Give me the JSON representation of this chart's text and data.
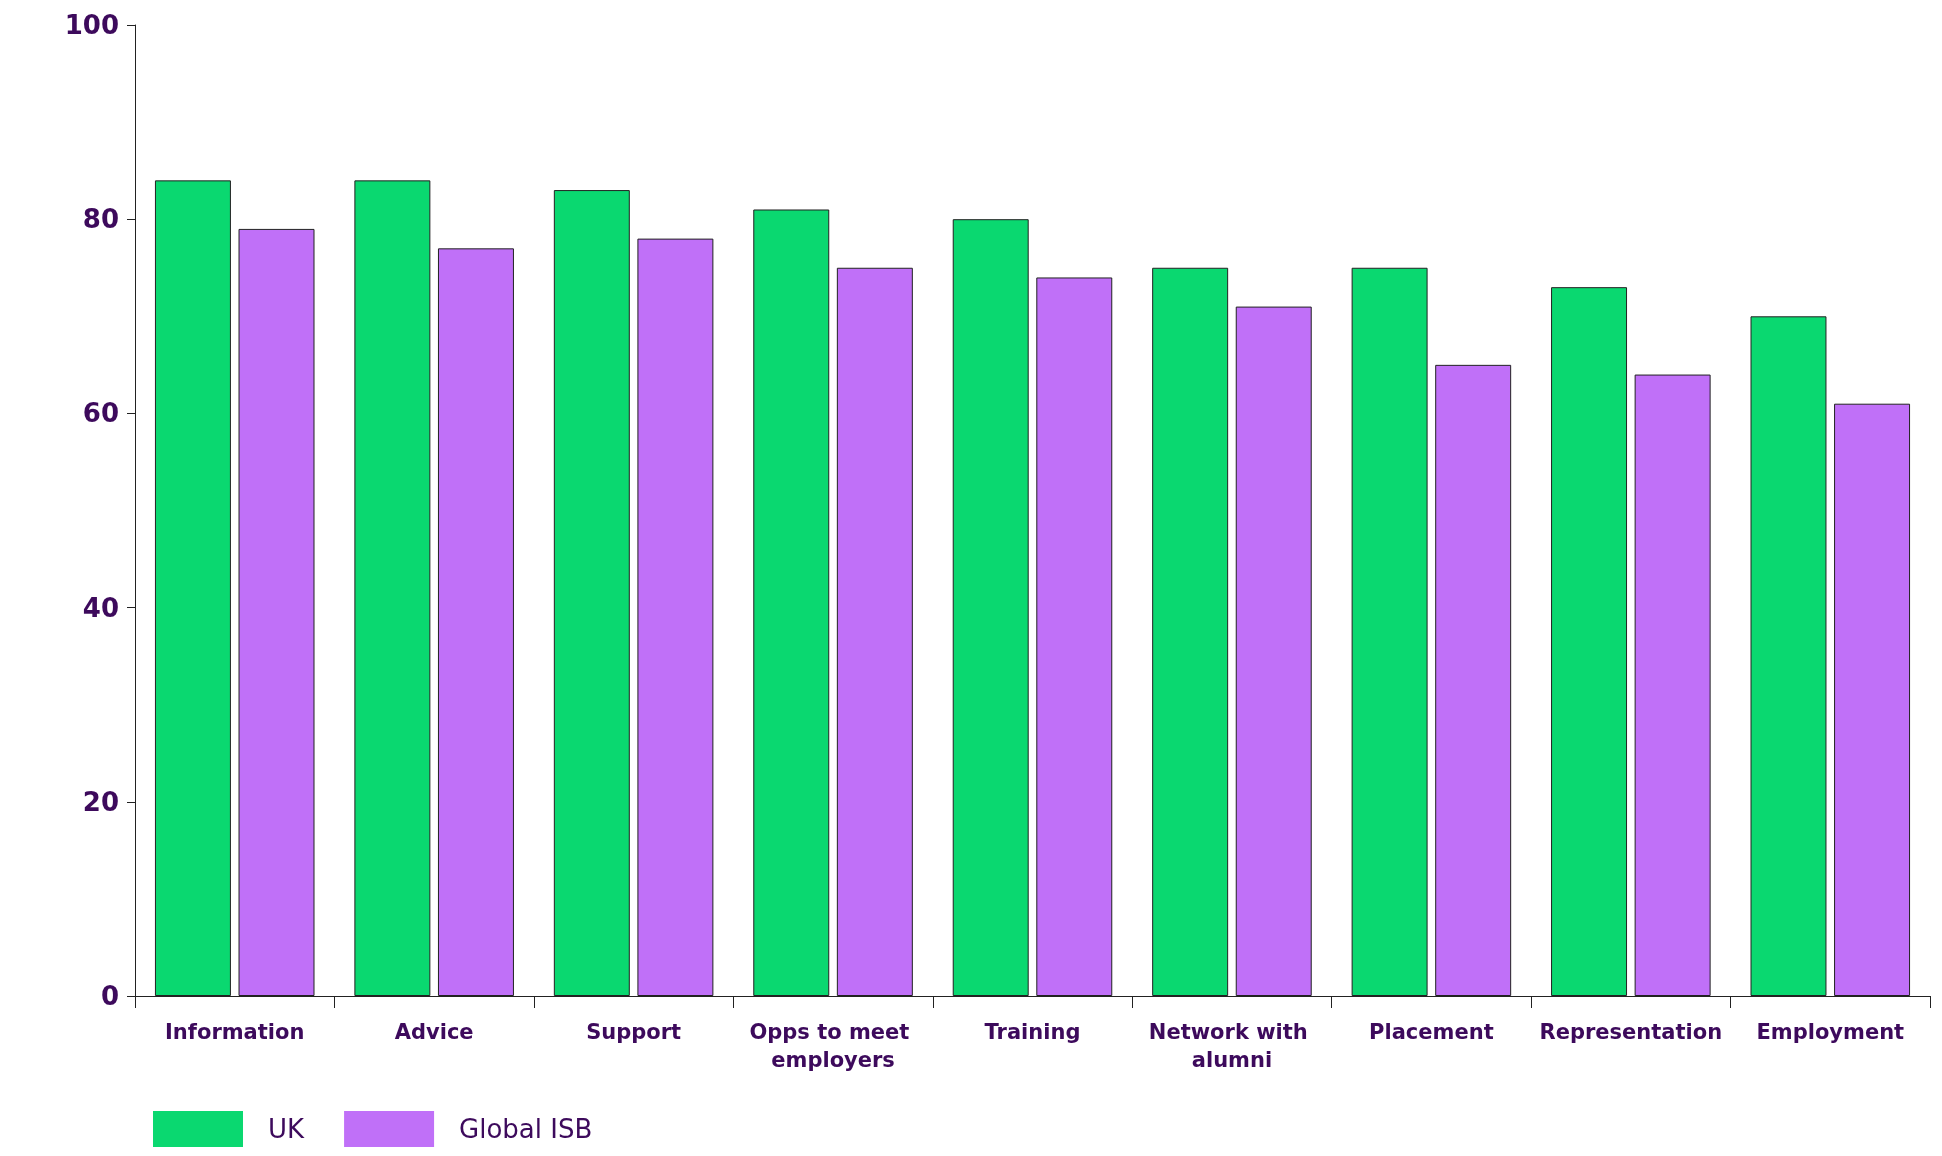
{
  "chart_data": {
    "type": "bar",
    "categories": [
      "Information",
      "Advice",
      "Support",
      "Opps to meet employers",
      "Training",
      "Network with alumni",
      "Placement",
      "Representation",
      "Employment"
    ],
    "series": [
      {
        "name": "UK",
        "color": "#0ad870",
        "values": [
          84,
          84,
          83,
          81,
          80,
          75,
          75,
          73,
          70
        ]
      },
      {
        "name": "Global ISB",
        "color": "#c070f8",
        "values": [
          79,
          77,
          78,
          75,
          74,
          71,
          65,
          64,
          61
        ]
      }
    ],
    "ylim": [
      0,
      100
    ],
    "yticks": [
      0,
      20,
      40,
      60,
      80,
      100
    ],
    "grid": false,
    "legend": "bottom left"
  }
}
